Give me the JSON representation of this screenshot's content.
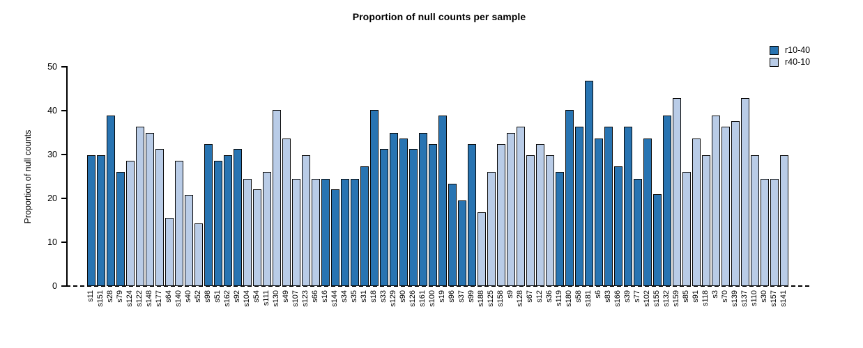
{
  "title": "Proportion of null counts per sample",
  "legend": {
    "position": "top-right",
    "items": [
      {
        "label": "r10-40",
        "color": "#2874B2"
      },
      {
        "label": "r40-10",
        "color": "#B9CCE7"
      }
    ]
  },
  "chart_data": {
    "type": "bar",
    "title": "Proportion of null counts per sample",
    "xlabel": "",
    "ylabel": "Proportion of null counts",
    "ylim": [
      0,
      50
    ],
    "yticks": [
      0,
      10,
      20,
      30,
      40,
      50
    ],
    "grid": false,
    "legend_position": "top-right",
    "baseline": {
      "value": 0,
      "style": "dashed"
    },
    "series": [
      {
        "name": "r10-40",
        "color": "#2874B2"
      },
      {
        "name": "r40-10",
        "color": "#B9CCE7"
      }
    ],
    "bars": [
      {
        "label": "s11",
        "value": 29.8,
        "series": "r10-40"
      },
      {
        "label": "s151",
        "value": 29.8,
        "series": "r10-40"
      },
      {
        "label": "s28",
        "value": 38.9,
        "series": "r10-40"
      },
      {
        "label": "s79",
        "value": 26.0,
        "series": "r10-40"
      },
      {
        "label": "s124",
        "value": 28.6,
        "series": "r40-10"
      },
      {
        "label": "s122",
        "value": 36.3,
        "series": "r40-10"
      },
      {
        "label": "s148",
        "value": 34.9,
        "series": "r40-10"
      },
      {
        "label": "s177",
        "value": 31.2,
        "series": "r40-10"
      },
      {
        "label": "s64",
        "value": 15.6,
        "series": "r40-10"
      },
      {
        "label": "s140",
        "value": 28.5,
        "series": "r40-10"
      },
      {
        "label": "s40",
        "value": 20.8,
        "series": "r40-10"
      },
      {
        "label": "s52",
        "value": 14.3,
        "series": "r40-10"
      },
      {
        "label": "s98",
        "value": 32.4,
        "series": "r10-40"
      },
      {
        "label": "s51",
        "value": 28.6,
        "series": "r10-40"
      },
      {
        "label": "s162",
        "value": 29.9,
        "series": "r10-40"
      },
      {
        "label": "s92",
        "value": 31.2,
        "series": "r10-40"
      },
      {
        "label": "s104",
        "value": 24.5,
        "series": "r40-10"
      },
      {
        "label": "s54",
        "value": 22.1,
        "series": "r40-10"
      },
      {
        "label": "s111",
        "value": 26.0,
        "series": "r40-10"
      },
      {
        "label": "s130",
        "value": 40.1,
        "series": "r40-10"
      },
      {
        "label": "s49",
        "value": 33.7,
        "series": "r40-10"
      },
      {
        "label": "s107",
        "value": 24.5,
        "series": "r40-10"
      },
      {
        "label": "s123",
        "value": 29.8,
        "series": "r40-10"
      },
      {
        "label": "s66",
        "value": 24.5,
        "series": "r40-10"
      },
      {
        "label": "s16",
        "value": 24.5,
        "series": "r10-40"
      },
      {
        "label": "s144",
        "value": 22.1,
        "series": "r10-40"
      },
      {
        "label": "s34",
        "value": 24.5,
        "series": "r10-40"
      },
      {
        "label": "s35",
        "value": 24.5,
        "series": "r10-40"
      },
      {
        "label": "s31",
        "value": 27.3,
        "series": "r10-40"
      },
      {
        "label": "s18",
        "value": 40.1,
        "series": "r10-40"
      },
      {
        "label": "s33",
        "value": 31.2,
        "series": "r10-40"
      },
      {
        "label": "s129",
        "value": 35.0,
        "series": "r10-40"
      },
      {
        "label": "s90",
        "value": 33.7,
        "series": "r10-40"
      },
      {
        "label": "s126",
        "value": 31.2,
        "series": "r10-40"
      },
      {
        "label": "s161",
        "value": 35.0,
        "series": "r10-40"
      },
      {
        "label": "s100",
        "value": 32.4,
        "series": "r10-40"
      },
      {
        "label": "s19",
        "value": 38.9,
        "series": "r10-40"
      },
      {
        "label": "s96",
        "value": 23.3,
        "series": "r10-40"
      },
      {
        "label": "s37",
        "value": 19.6,
        "series": "r10-40"
      },
      {
        "label": "s99",
        "value": 32.4,
        "series": "r10-40"
      },
      {
        "label": "s188",
        "value": 16.9,
        "series": "r40-10"
      },
      {
        "label": "s125",
        "value": 26.0,
        "series": "r40-10"
      },
      {
        "label": "s158",
        "value": 32.4,
        "series": "r40-10"
      },
      {
        "label": "s9",
        "value": 35.0,
        "series": "r40-10"
      },
      {
        "label": "s128",
        "value": 36.3,
        "series": "r40-10"
      },
      {
        "label": "s67",
        "value": 29.8,
        "series": "r40-10"
      },
      {
        "label": "s12",
        "value": 32.4,
        "series": "r40-10"
      },
      {
        "label": "s36",
        "value": 29.8,
        "series": "r40-10"
      },
      {
        "label": "s119",
        "value": 26.0,
        "series": "r10-40"
      },
      {
        "label": "s180",
        "value": 40.1,
        "series": "r10-40"
      },
      {
        "label": "s58",
        "value": 36.3,
        "series": "r10-40"
      },
      {
        "label": "s181",
        "value": 46.8,
        "series": "r10-40"
      },
      {
        "label": "s6",
        "value": 33.7,
        "series": "r10-40"
      },
      {
        "label": "s83",
        "value": 36.3,
        "series": "r10-40"
      },
      {
        "label": "s166",
        "value": 27.3,
        "series": "r10-40"
      },
      {
        "label": "s39",
        "value": 36.3,
        "series": "r10-40"
      },
      {
        "label": "s77",
        "value": 24.5,
        "series": "r10-40"
      },
      {
        "label": "s102",
        "value": 33.7,
        "series": "r10-40"
      },
      {
        "label": "s155",
        "value": 20.9,
        "series": "r10-40"
      },
      {
        "label": "s132",
        "value": 38.9,
        "series": "r10-40"
      },
      {
        "label": "s159",
        "value": 42.8,
        "series": "r40-10"
      },
      {
        "label": "s85",
        "value": 26.0,
        "series": "r40-10"
      },
      {
        "label": "s91",
        "value": 33.7,
        "series": "r40-10"
      },
      {
        "label": "s118",
        "value": 29.8,
        "series": "r40-10"
      },
      {
        "label": "s3",
        "value": 38.9,
        "series": "r40-10"
      },
      {
        "label": "s70",
        "value": 36.3,
        "series": "r40-10"
      },
      {
        "label": "s139",
        "value": 37.6,
        "series": "r40-10"
      },
      {
        "label": "s137",
        "value": 42.8,
        "series": "r40-10"
      },
      {
        "label": "s110",
        "value": 29.8,
        "series": "r40-10"
      },
      {
        "label": "s30",
        "value": 24.5,
        "series": "r40-10"
      },
      {
        "label": "s157",
        "value": 24.5,
        "series": "r40-10"
      },
      {
        "label": "s141",
        "value": 29.8,
        "series": "r40-10"
      }
    ]
  }
}
